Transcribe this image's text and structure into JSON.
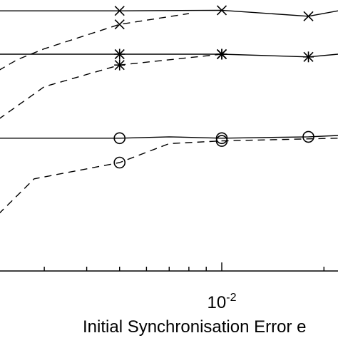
{
  "chart_data": {
    "type": "line",
    "xlabel": "Initial Synchronisation Error e",
    "x_scale": "log",
    "x_tick_labels": [
      {
        "base": "10",
        "exponent": "-2",
        "value": 0.01
      }
    ],
    "xlim": [
      0.0022,
      0.022
    ],
    "ylim": [
      0,
      1
    ],
    "grid": false,
    "series": [
      {
        "style": "solid",
        "marker": "x",
        "x": [
          0.0022,
          0.005,
          0.01,
          0.018,
          0.022
        ],
        "y": [
          0.96,
          0.96,
          0.962,
          0.94,
          0.96
        ],
        "marked": [
          false,
          true,
          true,
          true,
          false
        ]
      },
      {
        "style": "dashed",
        "marker": "x",
        "x": [
          0.0022,
          0.0025,
          0.003,
          0.005,
          0.008
        ],
        "y": [
          0.74,
          0.78,
          0.82,
          0.91,
          0.95
        ],
        "marked": [
          false,
          false,
          false,
          true,
          false
        ]
      },
      {
        "style": "solid",
        "marker": "asterisk",
        "x": [
          0.0022,
          0.005,
          0.01,
          0.018,
          0.022
        ],
        "y": [
          0.8,
          0.8,
          0.8,
          0.79,
          0.8
        ],
        "marked": [
          false,
          true,
          true,
          true,
          false
        ]
      },
      {
        "style": "dashed",
        "marker": "asterisk",
        "x": [
          0.0022,
          0.003,
          0.005,
          0.01
        ],
        "y": [
          0.56,
          0.68,
          0.76,
          0.8
        ],
        "marked": [
          false,
          false,
          true,
          true
        ]
      },
      {
        "style": "solid",
        "marker": "circle",
        "x": [
          0.0022,
          0.005,
          0.007,
          0.01,
          0.018,
          0.022
        ],
        "y": [
          0.49,
          0.49,
          0.495,
          0.49,
          0.495,
          0.5
        ],
        "marked": [
          false,
          true,
          false,
          true,
          true,
          false
        ]
      },
      {
        "style": "dashed",
        "marker": "circle",
        "x": [
          0.0022,
          0.0028,
          0.005,
          0.007,
          0.01,
          0.022
        ],
        "y": [
          0.21,
          0.34,
          0.4,
          0.47,
          0.48,
          0.49
        ],
        "marked": [
          false,
          false,
          true,
          false,
          true,
          false
        ]
      }
    ]
  }
}
